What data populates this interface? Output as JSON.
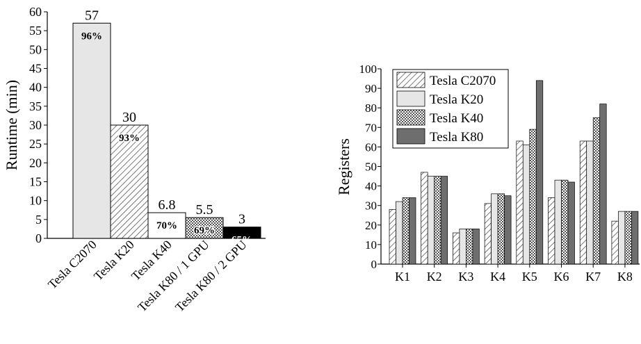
{
  "chart_data": [
    {
      "type": "bar",
      "ylabel": "Runtime (min)",
      "xlabel": "",
      "ylim": [
        0,
        60
      ],
      "yticks": [
        0,
        5,
        10,
        15,
        20,
        25,
        30,
        35,
        40,
        45,
        50,
        55,
        60
      ],
      "categories": [
        "Tesla C2070",
        "Tesla K20",
        "Tesla K40",
        "Tesla K80 / 1 GPU",
        "Tesla K80 / 2 GPU"
      ],
      "values": [
        57,
        30,
        6.8,
        5.5,
        3
      ],
      "value_labels": [
        "57",
        "30",
        "6.8",
        "5.5",
        "3"
      ],
      "inner_labels": [
        "96%",
        "93%",
        "70%",
        "69%",
        "65%"
      ],
      "fills": [
        "solid-light",
        "diagonal-hatch",
        "white",
        "crosshatch",
        "black"
      ],
      "grid": false
    },
    {
      "type": "bar",
      "ylabel": "Registers",
      "xlabel": "",
      "ylim": [
        0,
        100
      ],
      "yticks": [
        0,
        10,
        20,
        30,
        40,
        50,
        60,
        70,
        80,
        90,
        100
      ],
      "categories": [
        "K1",
        "K2",
        "K3",
        "K4",
        "K5",
        "K6",
        "K7",
        "K8"
      ],
      "series": [
        {
          "name": "Tesla C2070",
          "fill": "diagonal-hatch",
          "values": [
            28,
            47,
            16,
            31,
            63,
            34,
            63,
            22
          ]
        },
        {
          "name": "Tesla K20",
          "fill": "solid-light",
          "values": [
            32,
            45,
            18,
            36,
            61,
            43,
            63,
            27
          ]
        },
        {
          "name": "Tesla K40",
          "fill": "crosshatch",
          "values": [
            34,
            45,
            18,
            36,
            69,
            43,
            75,
            27
          ]
        },
        {
          "name": "Tesla K80",
          "fill": "solid-dark",
          "values": [
            34,
            45,
            18,
            35,
            94,
            42,
            82,
            27
          ]
        }
      ],
      "legend_position": "top-left",
      "grid": false
    }
  ]
}
